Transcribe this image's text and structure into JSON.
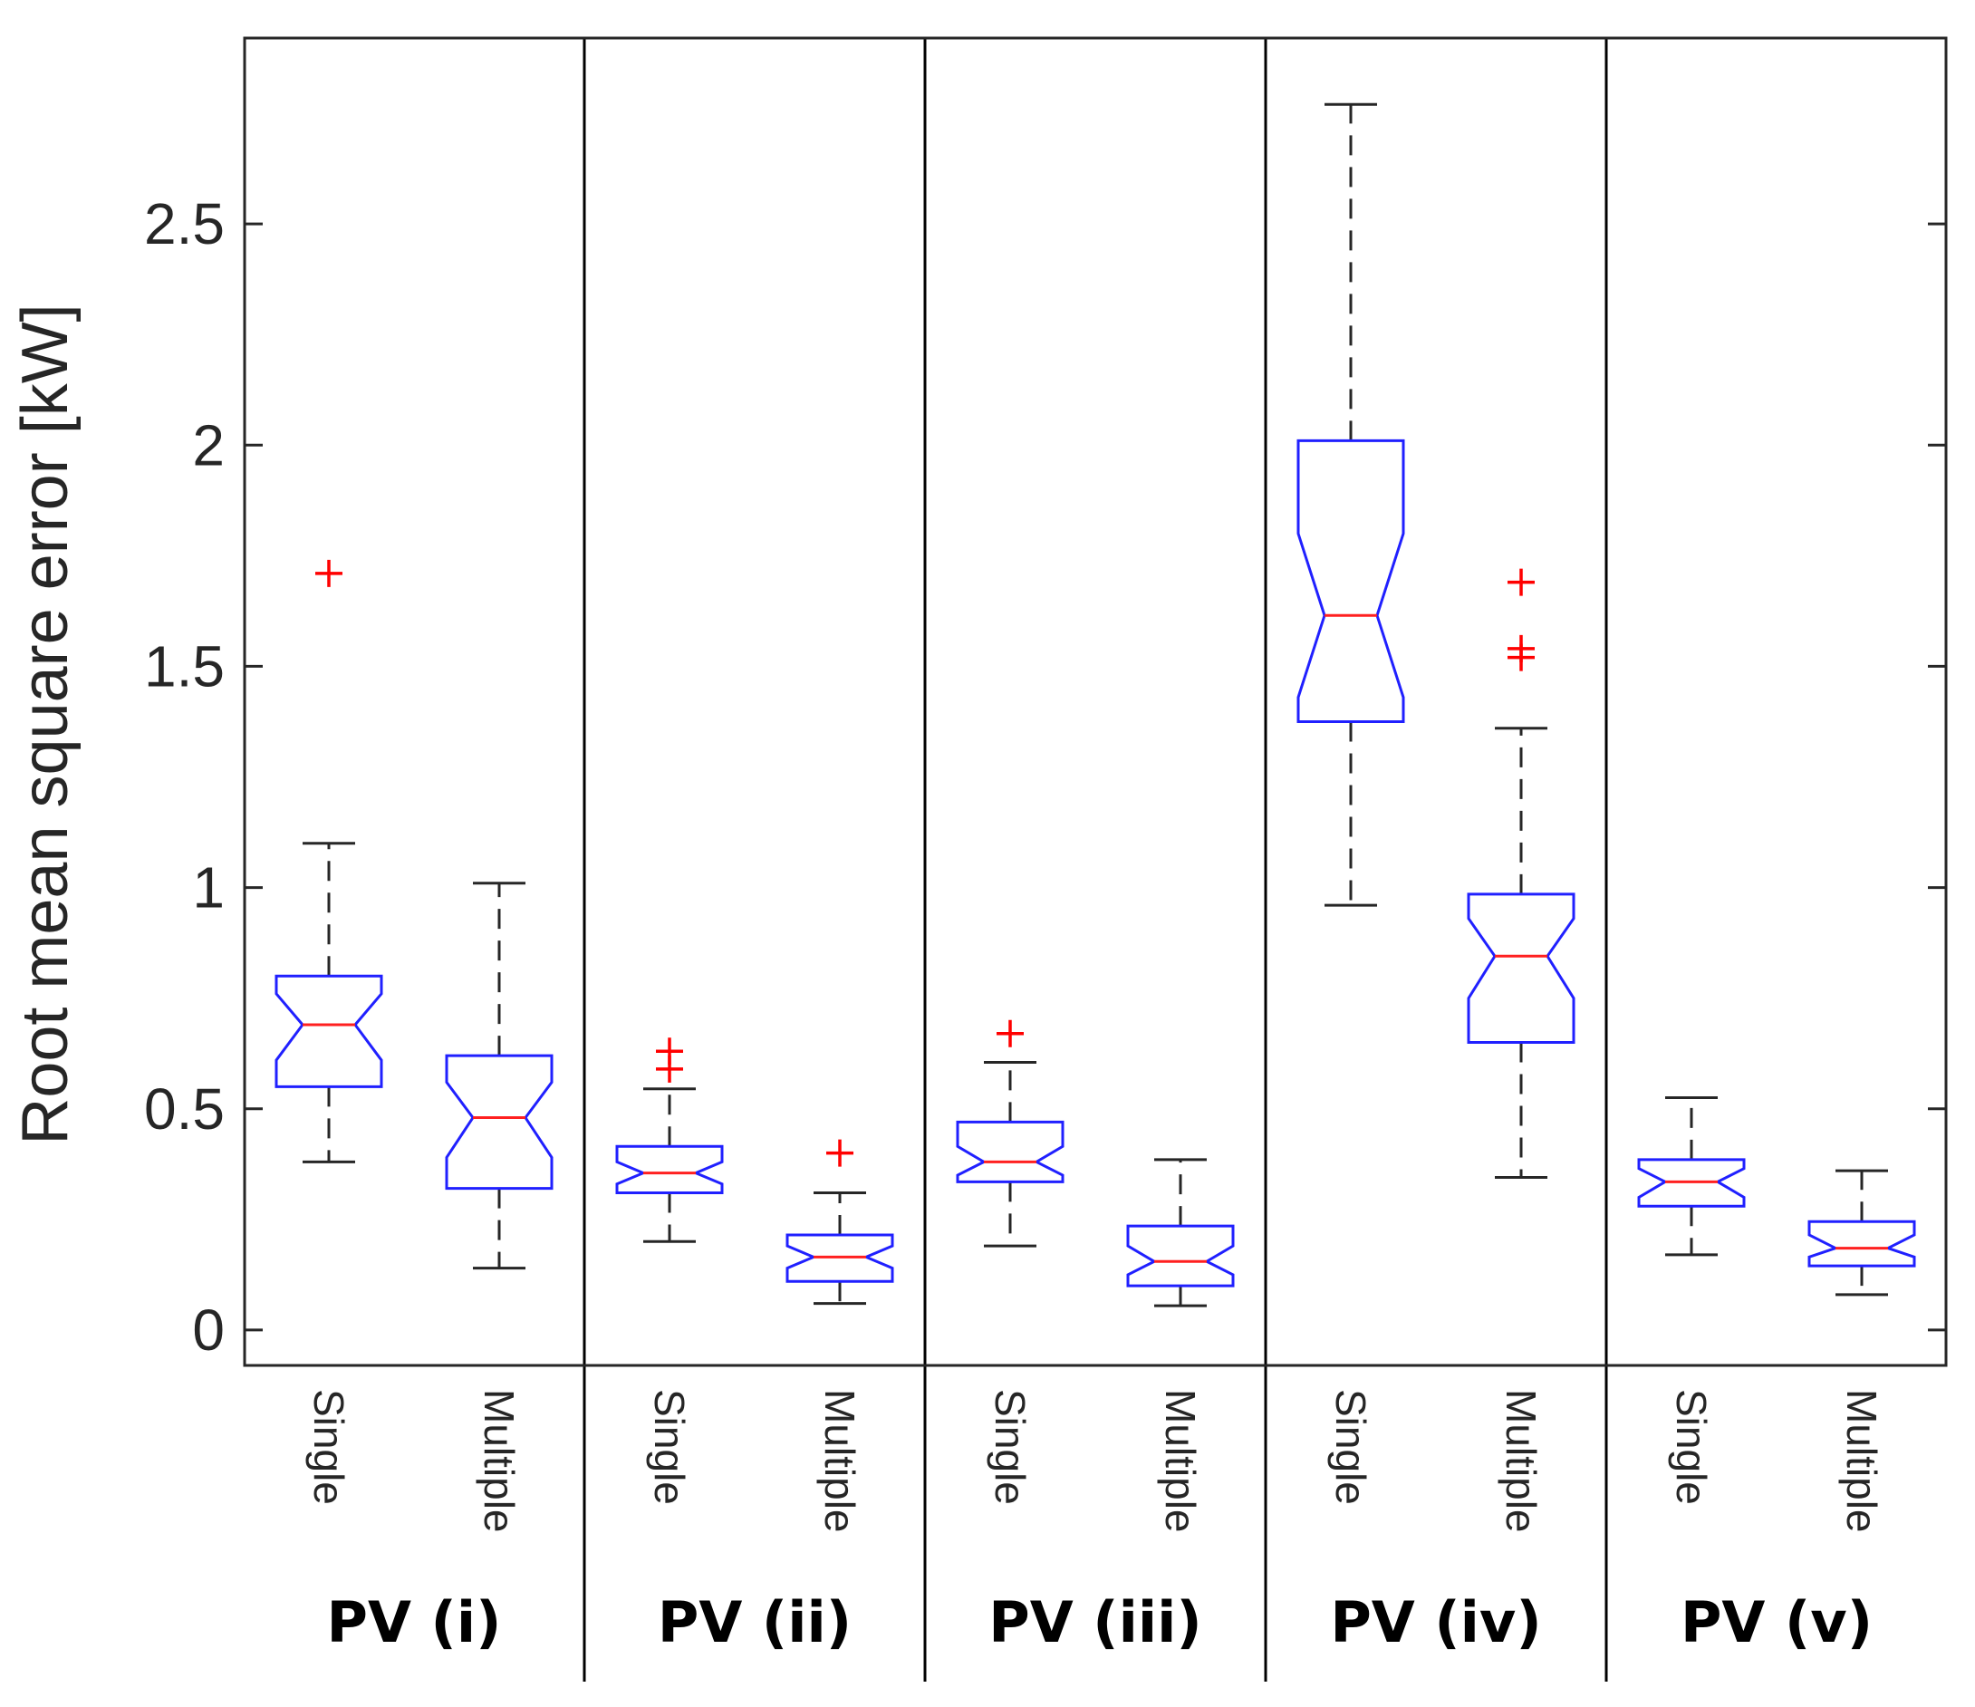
{
  "chart_data": {
    "type": "boxplot",
    "notched": true,
    "title": "",
    "xlabel": "",
    "ylabel": "Root mean square error [kW]",
    "ylim": [
      -0.08,
      2.92
    ],
    "yticks": [
      0,
      0.5,
      1,
      1.5,
      2,
      2.5
    ],
    "ytick_labels": [
      "0",
      "0.5",
      "1",
      "1.5",
      "2",
      "2.5"
    ],
    "colors": {
      "box": "#2020ff",
      "median": "#ff2020",
      "whisker": "#262626",
      "outlier": "#ff0000",
      "divider": "#000000"
    },
    "groups": [
      {
        "label": "PV (i)",
        "boxes": [
          {
            "category": "Single",
            "whisker_low": 0.38,
            "q1": 0.55,
            "median": 0.69,
            "q3": 0.8,
            "whisker_high": 1.1,
            "notch_low": 0.61,
            "notch_high": 0.76,
            "outliers": [
              1.71
            ]
          },
          {
            "category": "Multiple",
            "whisker_low": 0.14,
            "q1": 0.32,
            "median": 0.48,
            "q3": 0.62,
            "whisker_high": 1.01,
            "notch_low": 0.39,
            "notch_high": 0.56,
            "outliers": []
          }
        ]
      },
      {
        "label": "PV (ii)",
        "boxes": [
          {
            "category": "Single",
            "whisker_low": 0.2,
            "q1": 0.31,
            "median": 0.355,
            "q3": 0.415,
            "whisker_high": 0.545,
            "notch_low": 0.33,
            "notch_high": 0.38,
            "outliers": [
              0.59,
              0.63
            ]
          },
          {
            "category": "Multiple",
            "whisker_low": 0.06,
            "q1": 0.11,
            "median": 0.165,
            "q3": 0.215,
            "whisker_high": 0.31,
            "notch_low": 0.14,
            "notch_high": 0.19,
            "outliers": [
              0.4
            ]
          }
        ]
      },
      {
        "label": "PV (iii)",
        "boxes": [
          {
            "category": "Single",
            "whisker_low": 0.19,
            "q1": 0.335,
            "median": 0.38,
            "q3": 0.47,
            "whisker_high": 0.605,
            "notch_low": 0.35,
            "notch_high": 0.415,
            "outliers": [
              0.67
            ]
          },
          {
            "category": "Multiple",
            "whisker_low": 0.055,
            "q1": 0.1,
            "median": 0.155,
            "q3": 0.235,
            "whisker_high": 0.385,
            "notch_low": 0.125,
            "notch_high": 0.19,
            "outliers": []
          }
        ]
      },
      {
        "label": "PV (iv)",
        "boxes": [
          {
            "category": "Single",
            "whisker_low": 0.96,
            "q1": 1.375,
            "median": 1.615,
            "q3": 2.01,
            "whisker_high": 2.77,
            "notch_low": 1.43,
            "notch_high": 1.8,
            "outliers": []
          },
          {
            "category": "Multiple",
            "whisker_low": 0.345,
            "q1": 0.65,
            "median": 0.845,
            "q3": 0.985,
            "whisker_high": 1.36,
            "notch_low": 0.75,
            "notch_high": 0.93,
            "outliers": [
              1.52,
              1.54,
              1.69
            ]
          }
        ]
      },
      {
        "label": "PV (v)",
        "boxes": [
          {
            "category": "Single",
            "whisker_low": 0.17,
            "q1": 0.28,
            "median": 0.335,
            "q3": 0.385,
            "whisker_high": 0.525,
            "notch_low": 0.3,
            "notch_high": 0.365,
            "outliers": []
          },
          {
            "category": "Multiple",
            "whisker_low": 0.08,
            "q1": 0.145,
            "median": 0.185,
            "q3": 0.245,
            "whisker_high": 0.36,
            "notch_low": 0.165,
            "notch_high": 0.215,
            "outliers": []
          }
        ]
      }
    ]
  }
}
